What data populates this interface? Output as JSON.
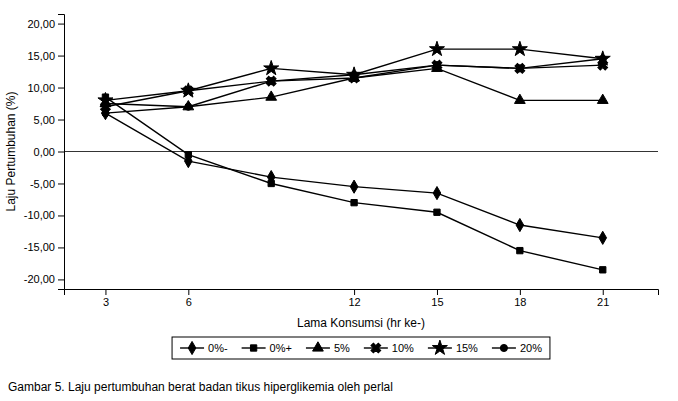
{
  "chart_data": {
    "type": "line",
    "title": "Gambar 5. Laju pertumbuhan berat badan tikus hiperglikemia oleh perlal",
    "x_label": "Lama Konsumsi (hr ke-)",
    "y_label": "Laju Pertumbuhan (%)",
    "x": [
      3,
      6,
      9,
      12,
      15,
      18,
      21
    ],
    "series": [
      {
        "name": "0%-",
        "color": "#000000",
        "marker": "diamond",
        "line_style": "solid",
        "values": [
          6.0,
          -1.5,
          -4.0,
          -5.5,
          -6.5,
          -11.5,
          -13.5
        ]
      },
      {
        "name": "0%+",
        "color": "#000000",
        "marker": "square",
        "line_style": "solid",
        "values": [
          8.5,
          -0.5,
          -5.0,
          -8.0,
          -9.5,
          -15.5,
          -18.5
        ]
      },
      {
        "name": "5%",
        "color": "#000000",
        "marker": "triangle",
        "line_style": "solid",
        "values": [
          7.5,
          7.0,
          8.5,
          11.5,
          13.0,
          8.0,
          8.0
        ]
      },
      {
        "name": "10%",
        "color": "#000000",
        "marker": "x",
        "line_style": "solid",
        "values": [
          7.0,
          9.5,
          11.0,
          11.5,
          13.5,
          13.0,
          13.5
        ]
      },
      {
        "name": "15%",
        "color": "#000000",
        "marker": "star",
        "line_style": "solid",
        "values": [
          8.0,
          9.5,
          13.0,
          12.0,
          16.0,
          16.0,
          14.5
        ]
      },
      {
        "name": "20%",
        "color": "#000000",
        "marker": "circle",
        "line_style": "solid",
        "values": [
          6.0,
          7.0,
          11.0,
          12.0,
          13.5,
          13.0,
          14.5
        ]
      }
    ],
    "xlim": [
      1.5,
      23
    ],
    "xticks": [
      3,
      6,
      12,
      15,
      18,
      21
    ],
    "ylim": [
      -21.5,
      21.5
    ],
    "yticks": [
      {
        "value": -20.0,
        "label": "-20,00"
      },
      {
        "value": -15.0,
        "label": "-15,00"
      },
      {
        "value": -10.0,
        "label": "-10,00"
      },
      {
        "value": -5.0,
        "label": "-5,00"
      },
      {
        "value": 0.0,
        "label": "0,00"
      },
      {
        "value": 5.0,
        "label": "5,00"
      },
      {
        "value": 10.0,
        "label": "10,00"
      },
      {
        "value": 15.0,
        "label": "15,00"
      },
      {
        "value": 20.0,
        "label": "20,00"
      }
    ],
    "grid": false,
    "legend": "bottom"
  }
}
